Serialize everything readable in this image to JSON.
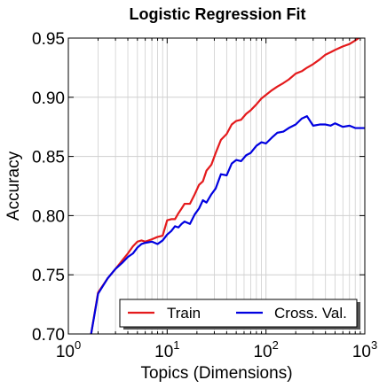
{
  "chart_data": {
    "type": "line",
    "title": "Logistic Regression Fit",
    "xlabel": "Topics (Dimensions)",
    "ylabel": "Accuracy",
    "xscale": "log",
    "xlim": [
      1,
      1000
    ],
    "ylim": [
      0.7,
      0.95
    ],
    "x_ticks": [
      {
        "value": 1,
        "base": "10",
        "exp": "0"
      },
      {
        "value": 10,
        "base": "10",
        "exp": "1"
      },
      {
        "value": 100,
        "base": "10",
        "exp": "2"
      },
      {
        "value": 1000,
        "base": "10",
        "exp": "3"
      }
    ],
    "y_ticks": [
      0.7,
      0.75,
      0.8,
      0.85,
      0.9,
      0.95
    ],
    "y_tick_labels": [
      "0.70",
      "0.75",
      "0.80",
      "0.85",
      "0.90",
      "0.95"
    ],
    "grid": true,
    "legend_position": "lower-right",
    "series": [
      {
        "name": "Train",
        "color": "#e41a1c",
        "x": [
          1.7,
          2,
          2.5,
          3,
          3.5,
          4,
          4.5,
          5,
          5.5,
          6,
          7,
          8,
          9,
          10,
          11,
          12,
          13,
          14,
          15,
          17,
          19,
          21,
          23,
          25,
          28,
          31,
          35,
          40,
          45,
          50,
          56,
          63,
          70,
          80,
          90,
          100,
          115,
          130,
          150,
          170,
          200,
          230,
          260,
          300,
          350,
          400,
          450,
          500,
          600,
          700,
          800,
          900
        ],
        "y": [
          0.7,
          0.735,
          0.747,
          0.755,
          0.762,
          0.768,
          0.774,
          0.778,
          0.779,
          0.778,
          0.78,
          0.782,
          0.783,
          0.796,
          0.797,
          0.797,
          0.802,
          0.806,
          0.81,
          0.81,
          0.818,
          0.826,
          0.829,
          0.838,
          0.843,
          0.853,
          0.864,
          0.869,
          0.877,
          0.88,
          0.881,
          0.886,
          0.889,
          0.894,
          0.899,
          0.902,
          0.906,
          0.909,
          0.912,
          0.915,
          0.92,
          0.922,
          0.925,
          0.928,
          0.932,
          0.936,
          0.938,
          0.94,
          0.943,
          0.945,
          0.948,
          0.951
        ]
      },
      {
        "name": "Cross. Val.",
        "color": "#0000e0",
        "x": [
          1.7,
          2,
          2.5,
          3,
          3.5,
          4,
          4.5,
          5,
          5.5,
          6,
          7,
          8,
          9,
          10,
          11,
          12,
          13,
          14,
          15,
          17,
          19,
          21,
          23,
          25,
          28,
          31,
          35,
          40,
          45,
          50,
          56,
          63,
          70,
          80,
          90,
          100,
          115,
          130,
          150,
          170,
          200,
          230,
          260,
          300,
          350,
          400,
          450,
          500,
          600,
          700,
          800,
          900,
          1000
        ],
        "y": [
          0.7,
          0.734,
          0.747,
          0.755,
          0.76,
          0.765,
          0.768,
          0.773,
          0.776,
          0.777,
          0.778,
          0.776,
          0.779,
          0.784,
          0.787,
          0.791,
          0.79,
          0.793,
          0.795,
          0.793,
          0.801,
          0.806,
          0.813,
          0.811,
          0.818,
          0.823,
          0.835,
          0.834,
          0.844,
          0.847,
          0.846,
          0.851,
          0.853,
          0.859,
          0.862,
          0.861,
          0.866,
          0.87,
          0.871,
          0.874,
          0.877,
          0.882,
          0.884,
          0.876,
          0.877,
          0.877,
          0.876,
          0.878,
          0.875,
          0.876,
          0.874,
          0.874,
          0.874
        ]
      }
    ]
  }
}
